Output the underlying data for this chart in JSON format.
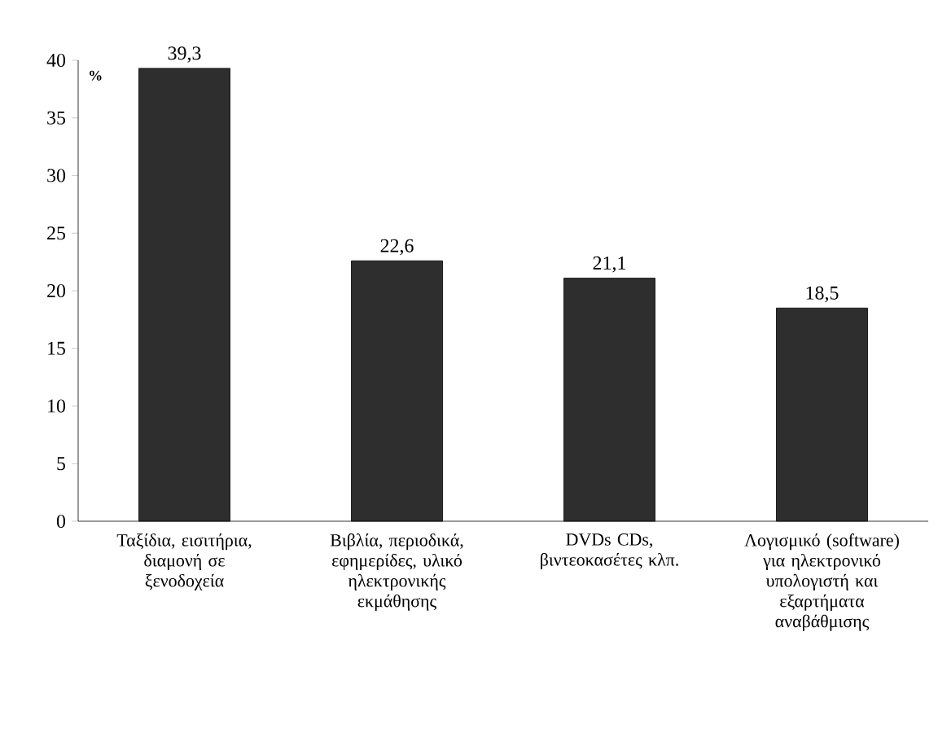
{
  "chart_data": {
    "type": "bar",
    "ylabel": "%",
    "categories": [
      "Ταξίδια, εισιτήρια, διαμονή σε ξενοδοχεία",
      "Βιβλία, περιοδικά, εφημερίδες, υλικό ηλεκτρονικής εκμάθησης",
      "DVDs CDs, βιντεοκασέτες κλπ.",
      "Λογισμικό (software) για ηλεκτρονικό υπολογιστή και εξαρτήματα αναβάθμισης"
    ],
    "values": [
      39.3,
      22.6,
      21.1,
      18.5
    ],
    "value_labels": [
      "39,3",
      "22,6",
      "21,1",
      "18,5"
    ],
    "color": "#2e2e2e",
    "ylim": [
      0,
      40
    ],
    "yticks": [
      0,
      5,
      10,
      15,
      20,
      25,
      30,
      35,
      40
    ],
    "grid": false
  }
}
